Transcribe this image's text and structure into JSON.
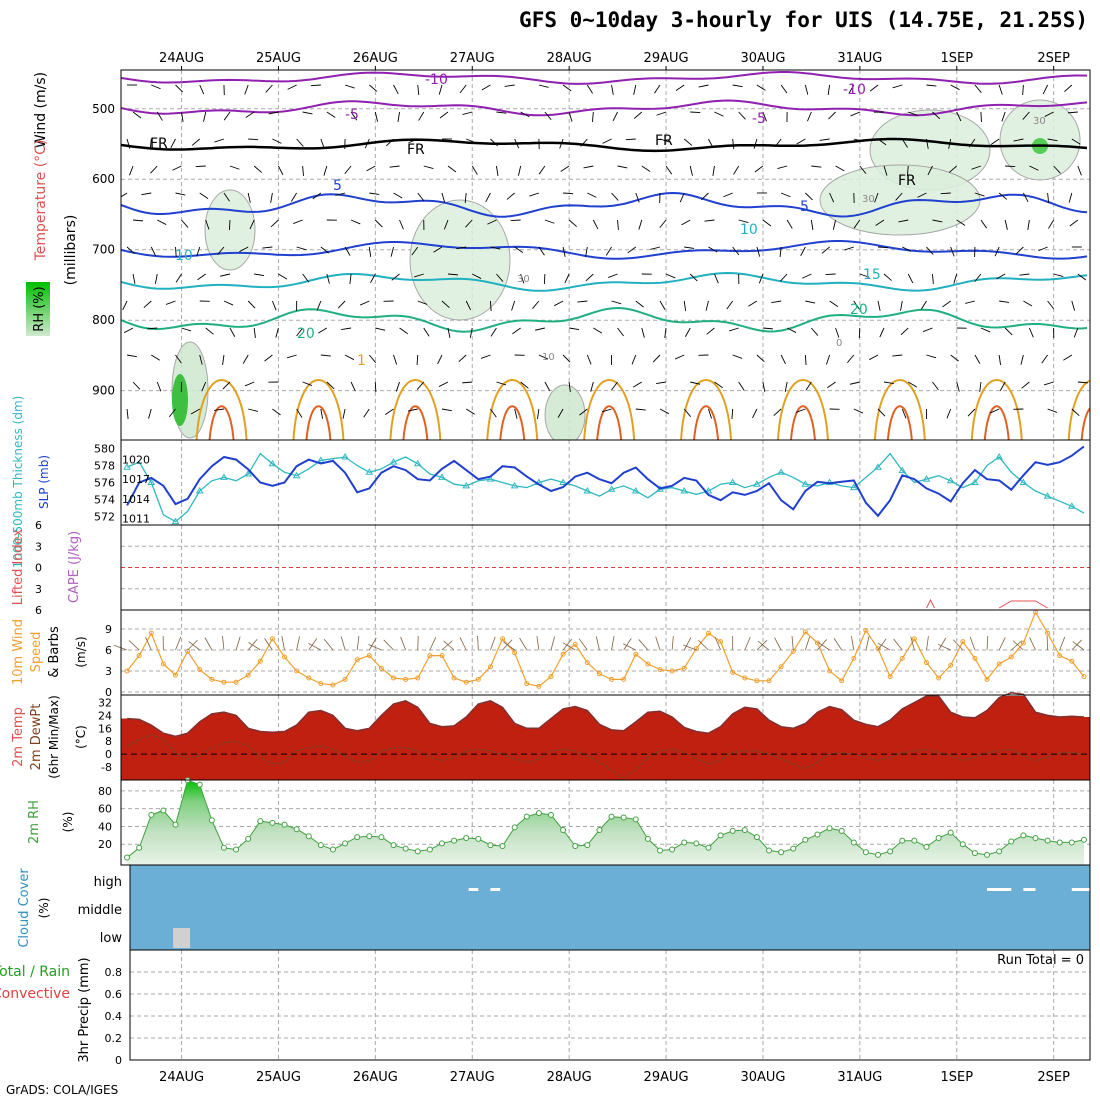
{
  "title": "GFS 0~10day 3-hourly for UIS (14.75E, 21.25S)",
  "credit": "GrADS: COLA/IGES",
  "colors": {
    "grid": "#aaaaaa",
    "temp_neg": "#9020b0",
    "temp_pos_blue": "#2040d0",
    "temp_cyan": "#20b0c0",
    "temp_green": "#20b080",
    "temp_orange": "#e0a020",
    "rh_green": "#3fbf3f",
    "slp": "#1f3fcf",
    "thickness": "#30b8c0",
    "wind10m": "#f0a030",
    "rh2m": "#40a040",
    "cloud": "#6baed6",
    "li_zero": "#e04040"
  },
  "x_axis": {
    "date_labels": [
      "24AUG",
      "25AUG",
      "26AUG",
      "27AUG",
      "28AUG",
      "29AUG",
      "30AUG",
      "31AUG",
      "1SEP",
      "2SEP"
    ],
    "time_steps": 80,
    "first_label_step": 5
  },
  "panels": {
    "upper_air": {
      "ylabel_parts": [
        "Wind (m/s)",
        "Temperature (°C)",
        "RH (%)",
        "(millibars)"
      ],
      "yticks": [
        500,
        600,
        700,
        800,
        900
      ],
      "ylim": [
        445,
        970
      ],
      "contour_labels": [
        "-10",
        "-10",
        "-5",
        "-5",
        "FR",
        "FR",
        "FR",
        "FR",
        "5",
        "5",
        "10",
        "10",
        "15",
        "20",
        "20",
        "1",
        "30",
        "30",
        "30",
        "10",
        "0"
      ]
    },
    "thickness_slp": {
      "ylabel_left": "1000-500mb Thickness (dm)",
      "ylabel_right": "SLP (mb)",
      "thickness_ticks": [
        572,
        574,
        576,
        578,
        580
      ],
      "slp_ticks": [
        1011,
        1014,
        1017,
        1020
      ]
    },
    "li_cape": {
      "ylabel_left": "Lifted Index",
      "ylabel_right": "CAPE (J/kg)",
      "yticks": [
        "6",
        "3",
        "0",
        "3",
        "6"
      ]
    },
    "wind10m": {
      "ylabel": [
        "10m Wind",
        "Speed",
        "& Barbs"
      ],
      "yunit": "(m/s)",
      "yticks": [
        0,
        3,
        6,
        9
      ]
    },
    "temp2m": {
      "ylabel": [
        "2m Temp",
        "2m DewPt",
        "(6hr Min/Max)"
      ],
      "yunit": "(°C)",
      "yticks": [
        "32",
        "24",
        "16",
        "8",
        "0",
        "-8"
      ]
    },
    "rh2m": {
      "ylabel": "2m RH",
      "yunit": "(%)",
      "yticks": [
        20,
        40,
        60,
        80
      ]
    },
    "cloud": {
      "ylabel": "Cloud Cover",
      "yunit": "(%)",
      "levels": [
        "high",
        "middle",
        "low"
      ]
    },
    "precip": {
      "ylabel_total": "Total / Rain",
      "ylabel_conv": "Convective",
      "yunit": "3hr Precip (mm)",
      "yticks": [
        "0",
        "0.2",
        "0.4",
        "0.6",
        "0.8"
      ],
      "run_total": "Run Total = 0"
    }
  },
  "chart_data": [
    {
      "type": "line",
      "name": "thickness_slp",
      "x_unit": "3-hourly step",
      "series": [
        {
          "name": "1000-500mb Thickness (dm)",
          "axis": "left",
          "values": [
            577.8,
            578.4,
            576.0,
            572.2,
            571.4,
            572.6,
            575.0,
            576.2,
            576.6,
            576.2,
            577.0,
            579.4,
            578.2,
            577.2,
            576.8,
            577.6,
            578.6,
            578.8,
            579.0,
            578.0,
            577.2,
            577.6,
            578.4,
            579.0,
            578.2,
            577.0,
            576.6,
            575.8,
            575.6,
            576.2,
            576.4,
            576.0,
            575.6,
            575.4,
            576.0,
            576.4,
            576.0,
            575.6,
            575.0,
            574.4,
            575.2,
            575.6,
            575.0,
            574.2,
            575.2,
            575.4,
            575.0,
            574.6,
            575.0,
            575.8,
            576.0,
            575.4,
            575.8,
            576.6,
            577.2,
            576.6,
            575.8,
            575.6,
            576.0,
            575.6,
            575.4,
            576.6,
            577.8,
            579.4,
            577.4,
            576.0,
            576.4,
            576.8,
            576.2,
            575.4,
            576.0,
            578.0,
            579.0,
            577.2,
            576.0,
            575.0,
            574.4,
            573.8,
            573.2,
            572.4
          ]
        },
        {
          "name": "SLP (mb)",
          "axis": "right",
          "values": [
            1013.0,
            1016.5,
            1017.2,
            1016.0,
            1013.2,
            1014.0,
            1017.0,
            1019.0,
            1020.4,
            1020.0,
            1018.5,
            1016.5,
            1016.0,
            1016.5,
            1019.0,
            1020.0,
            1019.4,
            1019.8,
            1018.0,
            1015.0,
            1015.6,
            1018.0,
            1019.0,
            1018.4,
            1017.0,
            1016.8,
            1018.6,
            1019.8,
            1018.4,
            1017.0,
            1017.4,
            1019.0,
            1018.8,
            1017.4,
            1016.2,
            1015.2,
            1015.8,
            1017.4,
            1018.0,
            1017.0,
            1016.4,
            1018.0,
            1018.8,
            1017.0,
            1015.6,
            1016.0,
            1017.2,
            1016.8,
            1014.6,
            1013.8,
            1015.0,
            1014.6,
            1015.2,
            1016.4,
            1013.8,
            1012.4,
            1015.2,
            1016.6,
            1016.4,
            1016.6,
            1016.8,
            1013.4,
            1011.4,
            1013.8,
            1017.6,
            1017.0,
            1015.6,
            1014.8,
            1013.6,
            1016.4,
            1018.4,
            1017.0,
            1016.8,
            1015.4,
            1017.6,
            1019.6,
            1019.2,
            1019.6,
            1020.6,
            1022.0
          ]
        }
      ]
    },
    {
      "type": "line",
      "name": "wind10m_speed",
      "y_unit": "m/s",
      "values": [
        3.0,
        5.2,
        8.4,
        4.0,
        2.4,
        5.8,
        3.2,
        1.8,
        1.4,
        1.4,
        2.4,
        4.4,
        7.6,
        5.0,
        3.0,
        2.0,
        1.2,
        1.0,
        1.8,
        4.6,
        5.2,
        3.4,
        2.0,
        1.8,
        2.0,
        5.2,
        5.2,
        2.0,
        1.4,
        1.8,
        3.6,
        7.6,
        5.6,
        1.2,
        0.8,
        2.2,
        5.4,
        6.8,
        4.2,
        2.6,
        1.8,
        1.8,
        5.4,
        4.0,
        3.2,
        3.0,
        3.4,
        6.2,
        8.4,
        7.2,
        2.8,
        2.0,
        1.6,
        1.6,
        3.6,
        5.8,
        8.6,
        7.0,
        3.0,
        1.6,
        4.8,
        8.8,
        6.2,
        2.2,
        4.8,
        7.6,
        4.2,
        2.0,
        3.8,
        7.2,
        4.8,
        1.8,
        4.0,
        5.0,
        7.0,
        11.4,
        8.4,
        5.2,
        4.4,
        2.2
      ]
    },
    {
      "type": "area",
      "name": "temp2m",
      "y_unit": "°C",
      "series": [
        {
          "name": "2m Temp",
          "values": [
            22.0,
            21.5,
            18.0,
            13.0,
            11.0,
            13.0,
            20.0,
            25.0,
            26.0,
            24.0,
            16.0,
            14.0,
            13.5,
            14.0,
            18.0,
            26.0,
            27.0,
            24.0,
            16.0,
            14.5,
            16.0,
            24.0,
            31.0,
            33.0,
            29.0,
            19.0,
            17.0,
            17.5,
            23.0,
            31.0,
            33.0,
            29.0,
            19.0,
            16.0,
            16.0,
            22.0,
            28.0,
            29.5,
            27.0,
            18.5,
            15.0,
            14.5,
            20.0,
            26.0,
            26.5,
            23.0,
            16.5,
            14.0,
            13.0,
            17.0,
            25.0,
            29.0,
            28.0,
            21.0,
            17.0,
            16.0,
            19.0,
            26.0,
            29.5,
            27.5,
            21.0,
            18.5,
            17.0,
            21.0,
            28.0,
            32.0,
            36.0,
            36.0,
            26.0,
            23.0,
            22.5,
            27.0,
            35.0,
            38.0,
            37.0,
            26.0,
            24.0,
            23.0,
            23.5,
            23.0
          ]
        },
        {
          "name": "2m DewPt",
          "values": [
            5.0,
            9.0,
            12.0,
            9.0,
            1.0,
            -3.0,
            -1.0,
            4.0,
            7.0,
            8.0,
            5.0,
            -2.0,
            -6.0,
            -5.0,
            2.0,
            4.0,
            5.0,
            3.0,
            -1.0,
            -5.0,
            -4.0,
            2.0,
            4.0,
            4.0,
            2.0,
            -2.0,
            -4.0,
            -2.0,
            2.0,
            3.0,
            2.0,
            0.0,
            -3.0,
            -5.0,
            -3.0,
            2.0,
            3.0,
            2.0,
            -1.0,
            -5.0,
            -10.0,
            -15.0,
            -10.0,
            -2.0,
            2.0,
            3.0,
            1.0,
            -3.0,
            -6.0,
            -4.0,
            1.0,
            2.0,
            2.0,
            0.0,
            -3.0,
            -6.0,
            -9.0,
            -5.0,
            0.0,
            1.0,
            0.0,
            -2.0,
            -4.0,
            -2.0,
            1.0,
            2.0,
            3.0,
            1.0,
            -1.0,
            -4.0,
            -2.0,
            1.0,
            2.0,
            3.0,
            -1.0,
            -4.0,
            -2.0,
            1.0,
            1.0,
            0.0
          ]
        }
      ]
    },
    {
      "type": "area",
      "name": "rh2m",
      "y_unit": "%",
      "values": [
        5,
        16,
        53,
        58,
        42,
        92,
        87,
        47,
        16,
        14,
        26,
        46,
        44,
        42,
        37,
        29,
        19,
        14,
        21,
        28,
        29,
        28,
        19,
        15,
        12,
        14,
        21,
        24,
        27,
        26,
        19,
        18,
        39,
        51,
        55,
        53,
        36,
        18,
        19,
        36,
        51,
        50,
        48,
        26,
        13,
        14,
        22,
        21,
        16,
        30,
        35,
        36,
        28,
        13,
        11,
        15,
        25,
        31,
        38,
        35,
        22,
        11,
        8,
        12,
        24,
        24,
        17,
        27,
        33,
        20,
        10,
        8,
        12,
        23,
        30,
        27,
        24,
        22,
        22,
        25
      ]
    },
    {
      "type": "area",
      "name": "cloud_cover",
      "series": [
        {
          "name": "high",
          "segments": [
            [
              28.2,
              29.0
            ],
            [
              30.0,
              30.8
            ],
            [
              71.0,
              73.0
            ],
            [
              74.0,
              75.0
            ],
            [
              78.0,
              81.0
            ]
          ]
        },
        {
          "name": "low",
          "segments": [
            [
              3.8,
              5.2
            ]
          ]
        }
      ]
    },
    {
      "type": "bar",
      "name": "precip_3hr",
      "y_unit": "mm",
      "values": [],
      "ylim": [
        0,
        0.9
      ]
    }
  ]
}
